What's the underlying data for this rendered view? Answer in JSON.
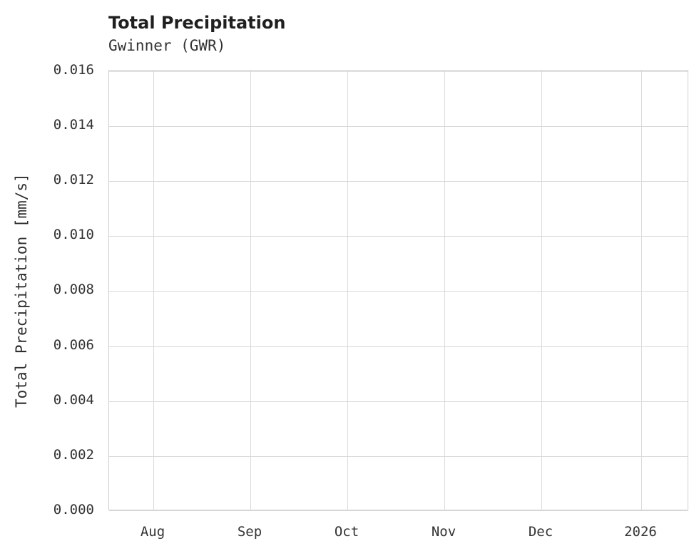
{
  "chart_data": {
    "type": "line",
    "title": "Total Precipitation",
    "subtitle": "Gwinner (GWR)",
    "xlabel": "",
    "ylabel": "Total Precipitation [mm/s]",
    "ylim": [
      0.0,
      0.016
    ],
    "y_ticks": [
      "0.000",
      "0.002",
      "0.004",
      "0.006",
      "0.008",
      "0.010",
      "0.012",
      "0.014",
      "0.016"
    ],
    "x_ticks": [
      "Aug",
      "Sep",
      "Oct",
      "Nov",
      "Dec",
      "2026"
    ],
    "grid": true,
    "legend": "none",
    "series": []
  },
  "colors": {
    "background": "#ffffff",
    "grid": "#d9d9d9",
    "plot_border": "#cfcfcf",
    "title_text": "#1f1f1f",
    "tick_text": "#333333"
  }
}
